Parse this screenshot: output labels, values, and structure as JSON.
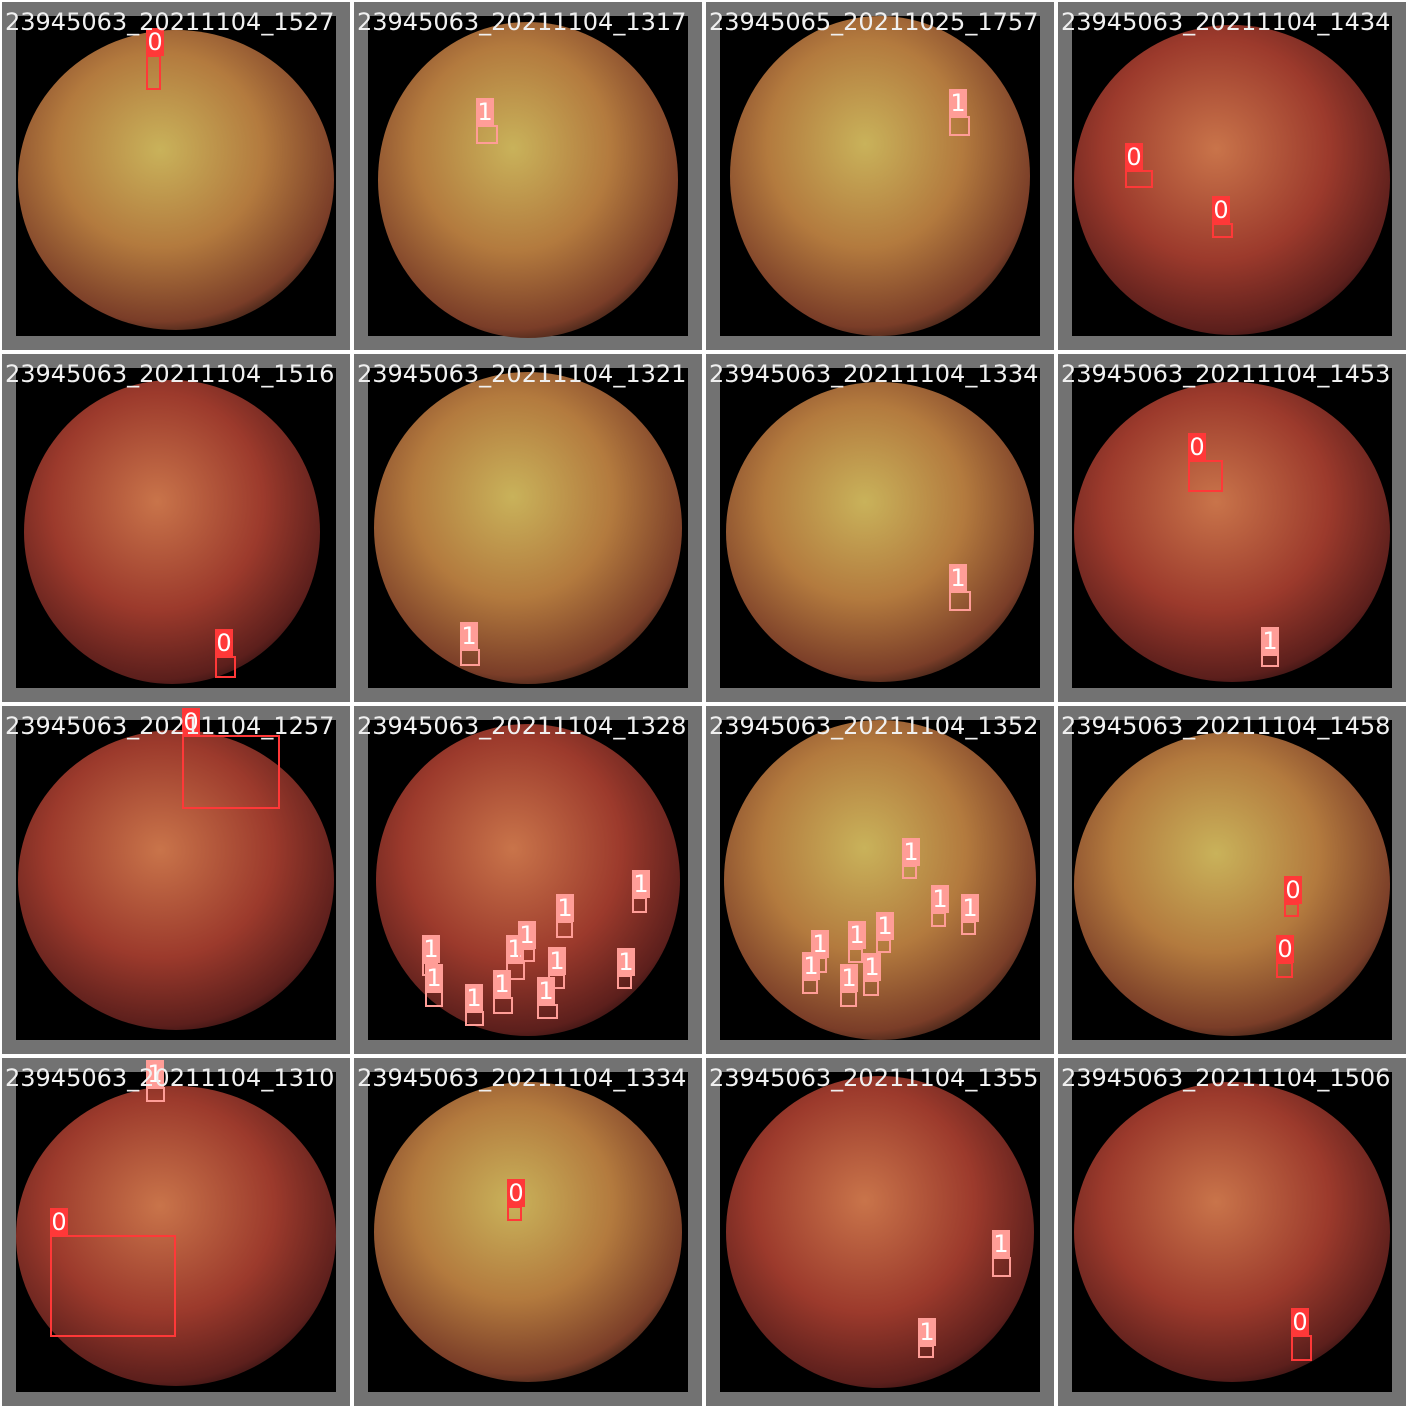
{
  "tiles": [
    {
      "filename": "23945063_20211104_1527",
      "labels": [
        "0"
      ]
    },
    {
      "filename": "23945063_20211104_1317",
      "labels": [
        "1"
      ]
    },
    {
      "filename": "23945065_20211025_1757",
      "labels": [
        "1"
      ]
    },
    {
      "filename": "23945063_20211104_1434",
      "labels": [
        "0",
        "0"
      ]
    },
    {
      "filename": "23945063_20211104_1516",
      "labels": [
        "0"
      ]
    },
    {
      "filename": "23945063_20211104_1321",
      "labels": [
        "1"
      ]
    },
    {
      "filename": "23945063_20211104_1334",
      "labels": [
        "1"
      ]
    },
    {
      "filename": "23945063_20211104_1453",
      "labels": [
        "0",
        "1"
      ]
    },
    {
      "filename": "23945063_20211104_1257",
      "labels": [
        "0"
      ]
    },
    {
      "filename": "23945063_20211104_1328",
      "labels": [
        "1",
        "1",
        "1",
        "1",
        "1",
        "1",
        "1",
        "1",
        "1",
        "1",
        "1"
      ]
    },
    {
      "filename": "23945063_20211104_1352",
      "labels": [
        "1",
        "1",
        "1",
        "1",
        "1",
        "1",
        "1",
        "1",
        "1"
      ]
    },
    {
      "filename": "23945063_20211104_1458",
      "labels": [
        "0",
        "0"
      ]
    },
    {
      "filename": "23945063_20211104_1310",
      "labels": [
        "1",
        "0"
      ]
    },
    {
      "filename": "23945063_20211104_1334",
      "labels": [
        "0"
      ]
    },
    {
      "filename": "23945063_20211104_1355",
      "labels": [
        "1",
        "1"
      ]
    },
    {
      "filename": "23945063_20211104_1506",
      "labels": [
        "0"
      ]
    }
  ]
}
